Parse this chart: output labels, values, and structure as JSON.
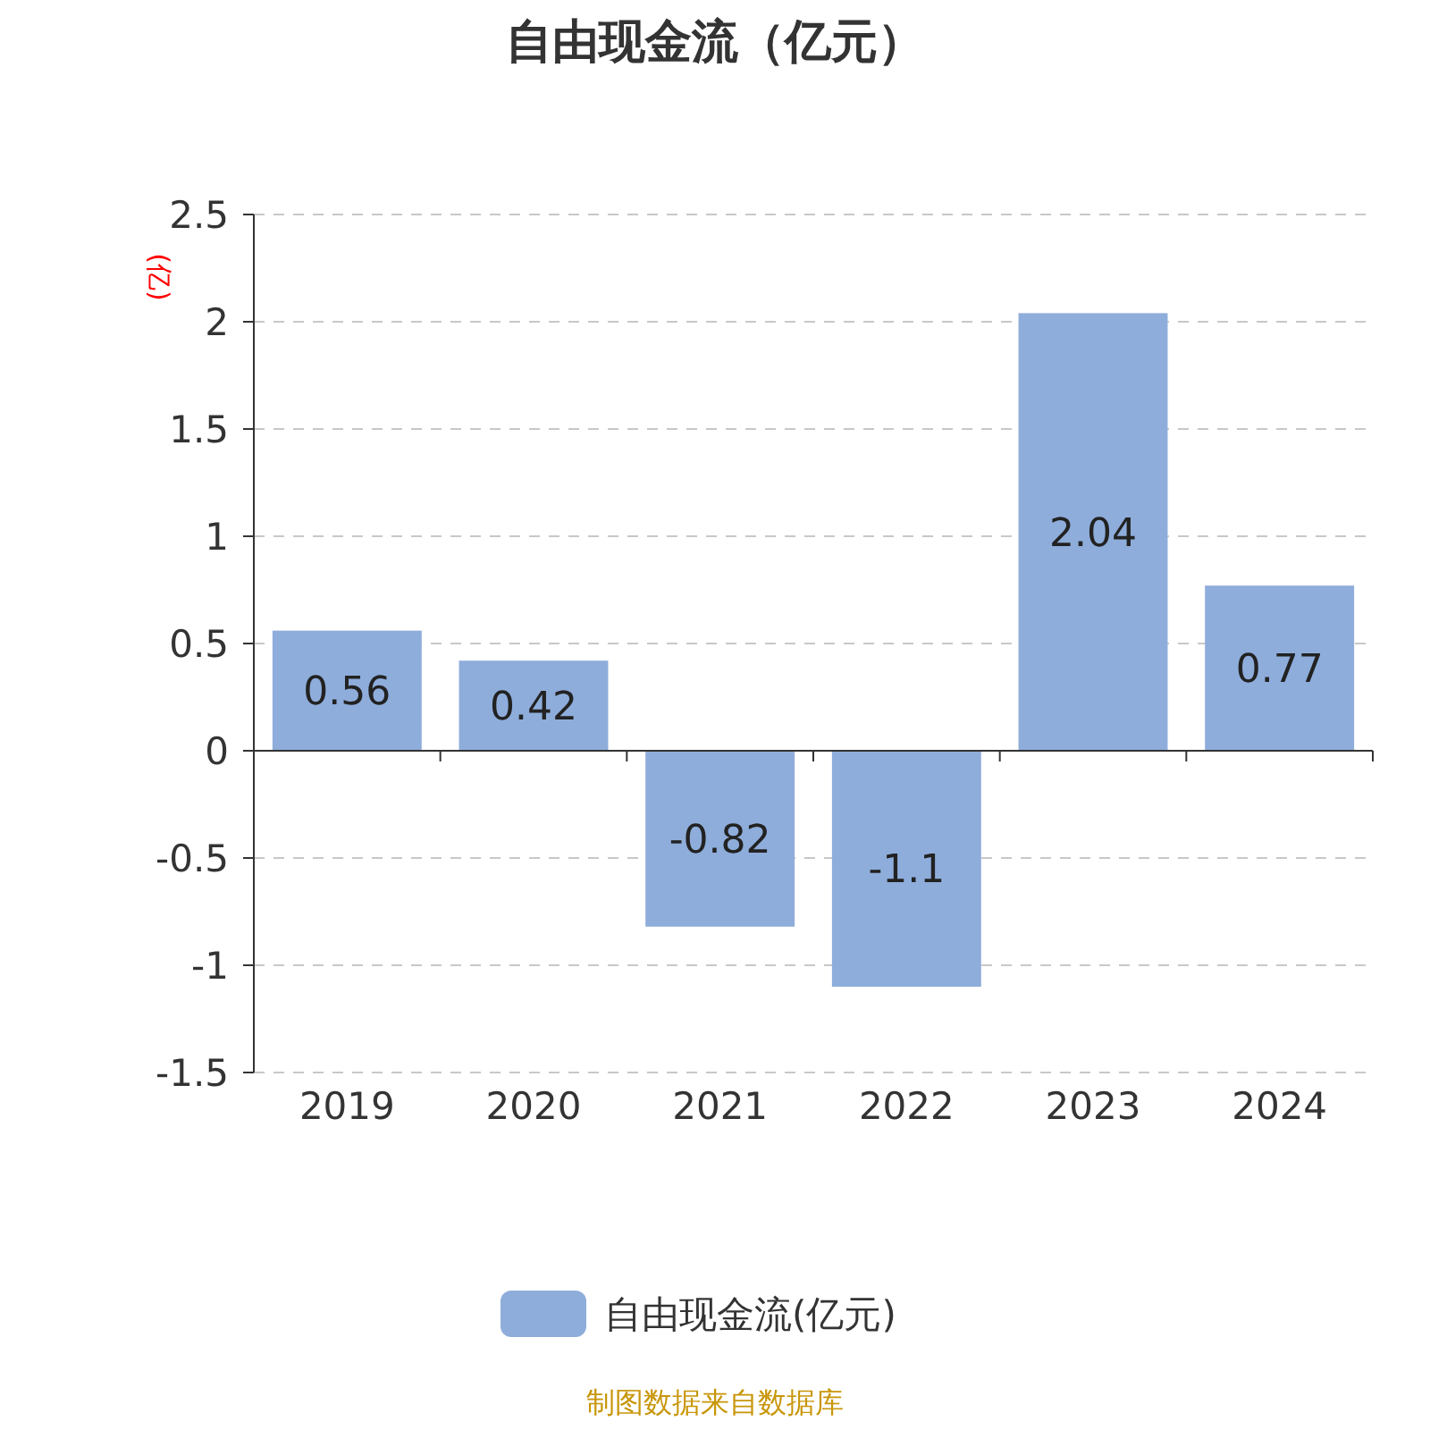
{
  "chart_data": {
    "type": "bar",
    "title": "自由现金流（亿元）",
    "ylabel": "(亿)",
    "categories": [
      "2019",
      "2020",
      "2021",
      "2022",
      "2023",
      "2024"
    ],
    "series": [
      {
        "name": "自由现金流(亿元)",
        "color": "#8eaddb",
        "values": [
          0.56,
          0.42,
          -0.82,
          -1.1,
          2.04,
          0.77
        ]
      }
    ],
    "ylim": [
      -1.5,
      2.5
    ],
    "yticks": [
      -1.5,
      -1,
      -0.5,
      0,
      0.5,
      1,
      1.5,
      2,
      2.5
    ],
    "grid": "y",
    "legend": "bottom",
    "data_labels": true,
    "annotations": [
      "制图数据来自数据库"
    ]
  }
}
